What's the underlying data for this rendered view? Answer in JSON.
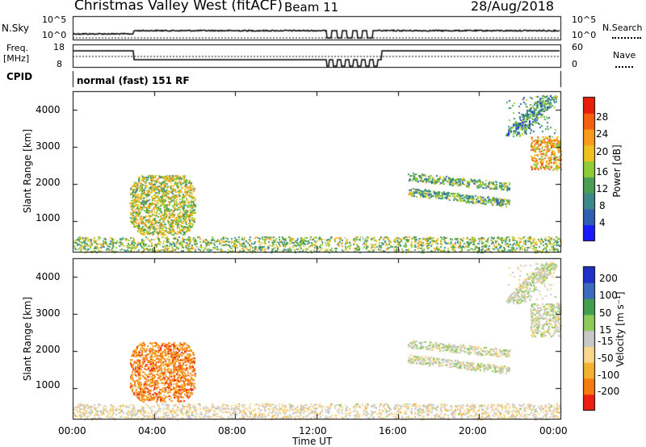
{
  "header": {
    "station": "Christmas Valley West (fitACF)",
    "beam": "Beam 11",
    "date": "28/Aug/2018"
  },
  "panels": {
    "nsky": {
      "label": "N.Sky",
      "ticks": [
        "10^5",
        "10^0"
      ],
      "right_label": "N.Search",
      "right_ticks": [
        "10^5",
        "10^0"
      ]
    },
    "freq": {
      "label_line1": "Freq.",
      "label_line2": "[MHz]",
      "ticks": [
        "18",
        "8"
      ],
      "right_label": "Nave",
      "right_ticks": [
        "60",
        "0"
      ]
    },
    "cpid": {
      "label": "CPID",
      "text": "normal (fast) 151 RF"
    }
  },
  "colors": {
    "power": [
      "#1a1aff",
      "#2f5fb5",
      "#3b8a8a",
      "#4a9f55",
      "#8fcc3a",
      "#f0c020",
      "#f89a1a",
      "#f46010",
      "#e8200a"
    ],
    "velocity": [
      "#ee2010",
      "#f57a10",
      "#f5b030",
      "#fad68a",
      "#c8c8c8",
      "#8acc55",
      "#40a050",
      "#3b6bbf",
      "#2030c8"
    ]
  },
  "chart_data": [
    {
      "type": "heatmap",
      "name": "power",
      "xlabel": "",
      "ylabel": "Slant Range [km]",
      "xlim": [
        0,
        24
      ],
      "ylim": [
        180,
        4500
      ],
      "y_ticks": [
        "1000",
        "2000",
        "3000",
        "4000"
      ],
      "y_tick_values": [
        1000,
        2000,
        3000,
        4000
      ],
      "colorbar": {
        "label": "Power [dB]",
        "ticks": [
          "4",
          "8",
          "12",
          "16",
          "20",
          "24",
          "28"
        ],
        "tick_values": [
          4,
          8,
          12,
          16,
          20,
          24,
          28
        ],
        "range": [
          0,
          30
        ]
      },
      "regions": [
        {
          "t": [
            2.8,
            6.0
          ],
          "r": [
            650,
            2250
          ],
          "value": 16
        },
        {
          "t": [
            0.0,
            24.0
          ],
          "r": [
            180,
            600
          ],
          "value": 14
        },
        {
          "t": [
            16.5,
            21.5
          ],
          "r": [
            1400,
            2300
          ],
          "value": 12
        },
        {
          "t": [
            22.5,
            24.0
          ],
          "r": [
            2400,
            3300
          ],
          "value": 20
        },
        {
          "t": [
            21.3,
            23.8
          ],
          "r": [
            3300,
            4400
          ],
          "value": 10
        }
      ]
    },
    {
      "type": "heatmap",
      "name": "velocity",
      "xlabel": "Time UT",
      "ylabel": "Slant Range [km]",
      "xlim": [
        0,
        24
      ],
      "ylim": [
        180,
        4500
      ],
      "y_ticks": [
        "1000",
        "2000",
        "3000",
        "4000"
      ],
      "y_tick_values": [
        1000,
        2000,
        3000,
        4000
      ],
      "x_ticks": [
        "00:00",
        "04:00",
        "08:00",
        "12:00",
        "16:00",
        "20:00",
        "00:00"
      ],
      "x_tick_values": [
        0,
        4,
        8,
        12,
        16,
        20,
        24
      ],
      "colorbar": {
        "label": "Velocity [m s⁻¹]",
        "ticks": [
          "-200",
          "-100",
          "-50",
          "-15",
          "15",
          "50",
          "100",
          "200"
        ],
        "tick_values": [
          -200,
          -100,
          -50,
          -15,
          15,
          50,
          100,
          200
        ],
        "range": [
          -250,
          250
        ]
      },
      "regions": [
        {
          "t": [
            2.8,
            6.0
          ],
          "r": [
            650,
            2250
          ],
          "value": -150
        },
        {
          "t": [
            0.0,
            24.0
          ],
          "r": [
            180,
            600
          ],
          "value": -30
        },
        {
          "t": [
            16.5,
            21.5
          ],
          "r": [
            1400,
            2300
          ],
          "value": 0
        },
        {
          "t": [
            22.5,
            24.0
          ],
          "r": [
            2400,
            3300
          ],
          "value": 0
        },
        {
          "t": [
            21.3,
            23.8
          ],
          "r": [
            3300,
            4400
          ],
          "value": 0
        }
      ]
    }
  ]
}
